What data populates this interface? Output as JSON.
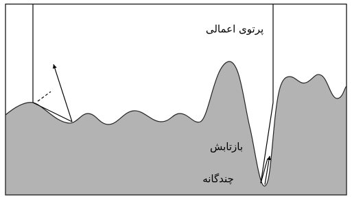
{
  "labels": {
    "incident_ray": "پرتوی اعمالی",
    "multiple_reflection_line1": "بازتابش",
    "multiple_reflection_line2": "چندگانه"
  }
}
